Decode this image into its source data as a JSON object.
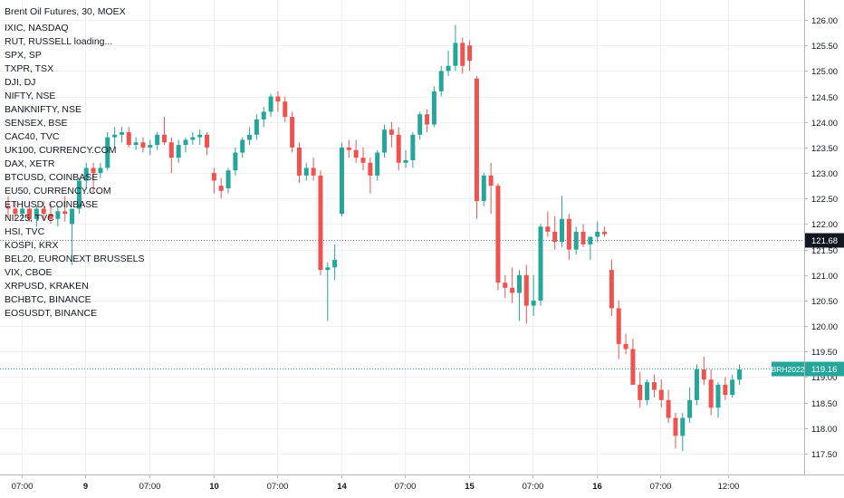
{
  "chart_data": {
    "type": "candlestick",
    "title": "Brent Oil Futures, 30, MOEX",
    "overlay_symbols": [
      "IXIC, NASDAQ",
      "RUT, RUSSELL loading...",
      "SPX, SP",
      "TXPR, TSX",
      "DJI, DJ",
      "NIFTY, NSE",
      "BANKNIFTY, NSE",
      "SENSEX, BSE",
      "CAC40, TVC",
      "UK100, CURRENCY.COM",
      "DAX, XETR",
      "BTCUSD, COINBASE",
      "EU50, CURRENCY.COM",
      "ETHUSD, COINBASE",
      "NI225, TVC",
      "HSI, TVC",
      "KOSPI, KRX",
      "BEL20, EURONEXT BRUSSELS",
      "VIX, CBOE",
      "XRPUSD, KRAKEN",
      "BCHBTC, BINANCE",
      "EOSUSDT, BINANCE"
    ],
    "y_ticks": [
      "126.00",
      "125.50",
      "125.00",
      "124.50",
      "124.00",
      "123.50",
      "123.00",
      "122.50",
      "122.00",
      "121.50",
      "121.00",
      "120.50",
      "120.00",
      "119.50",
      "119.00",
      "118.50",
      "118.00",
      "117.50"
    ],
    "ylim": [
      117.2,
      126.3
    ],
    "x_ticks": [
      {
        "label": "07:00",
        "bold": false,
        "index": 1.9
      },
      {
        "label": "9",
        "bold": true,
        "index": 10.9
      },
      {
        "label": "07:00",
        "bold": false,
        "index": 19.9
      },
      {
        "label": "10",
        "bold": true,
        "index": 28.9
      },
      {
        "label": "07:00",
        "bold": false,
        "index": 37.9
      },
      {
        "label": "14",
        "bold": true,
        "index": 46.9
      },
      {
        "label": "07:00",
        "bold": false,
        "index": 55.9
      },
      {
        "label": "15",
        "bold": true,
        "index": 64.9
      },
      {
        "label": "07:00",
        "bold": false,
        "index": 73.9
      },
      {
        "label": "16",
        "bold": true,
        "index": 82.9
      },
      {
        "label": "07:00",
        "bold": false,
        "index": 91.9
      },
      {
        "label": "12:00",
        "bold": false,
        "index": 101.4
      }
    ],
    "crosshair_price": "121.68",
    "crosshair_value": 121.68,
    "last_price": "119.16",
    "last_value": 119.16,
    "last_symbol": "BRH2022",
    "up_color": "#26a69a",
    "down_color": "#ef5350",
    "candles": [
      [
        122.35,
        122.55,
        122.1,
        122.3
      ],
      [
        122.3,
        122.45,
        122.1,
        122.2
      ],
      [
        122.2,
        122.45,
        122.1,
        122.3
      ],
      [
        122.3,
        122.45,
        122.05,
        122.1
      ],
      [
        122.1,
        122.35,
        121.95,
        122.3
      ],
      [
        122.3,
        122.45,
        122.1,
        122.2
      ],
      [
        122.2,
        122.4,
        122.0,
        122.1
      ],
      [
        122.1,
        122.35,
        121.95,
        122.25
      ],
      [
        122.25,
        122.55,
        122.05,
        122.2
      ],
      [
        122.0,
        122.3,
        121.2,
        122.3
      ],
      [
        122.3,
        122.9,
        122.2,
        122.85
      ],
      [
        122.85,
        123.2,
        122.7,
        123.1
      ],
      [
        123.1,
        123.2,
        122.6,
        123.0
      ],
      [
        123.0,
        123.2,
        122.9,
        123.1
      ],
      [
        123.1,
        123.8,
        123.05,
        123.7
      ],
      [
        123.7,
        123.9,
        123.5,
        123.75
      ],
      [
        123.75,
        123.9,
        123.6,
        123.8
      ],
      [
        123.8,
        123.9,
        123.5,
        123.55
      ],
      [
        123.55,
        123.7,
        123.45,
        123.6
      ],
      [
        123.6,
        123.7,
        123.4,
        123.5
      ],
      [
        123.5,
        123.65,
        123.35,
        123.55
      ],
      [
        123.55,
        123.8,
        123.45,
        123.75
      ],
      [
        123.75,
        124.1,
        123.55,
        123.6
      ],
      [
        123.6,
        123.7,
        123.0,
        123.3
      ],
      [
        123.3,
        123.65,
        123.2,
        123.55
      ],
      [
        123.55,
        123.7,
        123.4,
        123.65
      ],
      [
        123.65,
        123.8,
        123.55,
        123.7
      ],
      [
        123.7,
        123.85,
        123.55,
        123.75
      ],
      [
        123.75,
        123.8,
        123.35,
        123.5
      ],
      [
        123.0,
        123.1,
        122.6,
        122.85
      ],
      [
        122.75,
        122.9,
        122.5,
        122.65
      ],
      [
        122.7,
        123.1,
        122.6,
        123.05
      ],
      [
        123.05,
        123.5,
        122.95,
        123.4
      ],
      [
        123.4,
        123.7,
        123.3,
        123.65
      ],
      [
        123.65,
        123.9,
        123.55,
        123.75
      ],
      [
        123.75,
        124.15,
        123.65,
        124.05
      ],
      [
        124.05,
        124.3,
        123.9,
        124.2
      ],
      [
        124.2,
        124.55,
        124.1,
        124.5
      ],
      [
        124.5,
        124.6,
        124.2,
        124.4
      ],
      [
        124.4,
        124.5,
        124.0,
        124.1
      ],
      [
        124.1,
        124.2,
        123.4,
        123.5
      ],
      [
        123.5,
        123.6,
        122.8,
        122.95
      ],
      [
        122.95,
        123.2,
        122.85,
        123.1
      ],
      [
        123.1,
        123.3,
        122.85,
        122.95
      ],
      [
        122.95,
        123.05,
        121.0,
        121.1
      ],
      [
        121.1,
        121.25,
        120.1,
        121.15
      ],
      [
        121.15,
        121.6,
        120.9,
        121.3
      ],
      [
        122.2,
        123.6,
        122.15,
        123.5
      ],
      [
        123.5,
        123.65,
        123.3,
        123.45
      ],
      [
        123.45,
        123.65,
        123.2,
        123.3
      ],
      [
        123.3,
        123.5,
        123.05,
        123.2
      ],
      [
        123.2,
        123.3,
        122.6,
        122.95
      ],
      [
        122.95,
        123.45,
        122.85,
        123.4
      ],
      [
        123.4,
        123.95,
        123.3,
        123.85
      ],
      [
        123.85,
        124.0,
        123.5,
        123.75
      ],
      [
        123.75,
        123.9,
        123.05,
        123.2
      ],
      [
        123.2,
        123.45,
        123.1,
        123.25
      ],
      [
        123.25,
        123.8,
        123.1,
        123.75
      ],
      [
        123.75,
        124.2,
        123.65,
        124.15
      ],
      [
        124.15,
        124.25,
        123.8,
        123.95
      ],
      [
        123.95,
        124.7,
        123.9,
        124.6
      ],
      [
        124.6,
        125.1,
        124.5,
        125.0
      ],
      [
        125.0,
        125.4,
        124.9,
        125.1
      ],
      [
        125.1,
        125.9,
        125.0,
        125.55
      ],
      [
        125.55,
        125.65,
        124.95,
        125.1
      ],
      [
        125.5,
        125.6,
        125.0,
        125.2
      ],
      [
        124.85,
        124.9,
        122.1,
        122.45
      ],
      [
        122.45,
        123.0,
        122.35,
        122.95
      ],
      [
        122.95,
        123.2,
        122.2,
        122.75
      ],
      [
        122.75,
        122.8,
        120.7,
        120.85
      ],
      [
        120.85,
        121.0,
        120.55,
        120.75
      ],
      [
        120.75,
        121.15,
        120.45,
        120.65
      ],
      [
        120.65,
        121.1,
        120.1,
        121.0
      ],
      [
        121.0,
        121.2,
        120.05,
        120.4
      ],
      [
        120.4,
        121.0,
        120.2,
        120.5
      ],
      [
        120.5,
        122.0,
        120.4,
        121.95
      ],
      [
        121.95,
        122.25,
        121.75,
        121.85
      ],
      [
        121.85,
        122.15,
        121.5,
        121.65
      ],
      [
        121.65,
        122.55,
        121.55,
        122.1
      ],
      [
        122.1,
        122.2,
        121.3,
        121.5
      ],
      [
        121.5,
        121.95,
        121.4,
        121.85
      ],
      [
        121.85,
        122.0,
        121.55,
        121.6
      ],
      [
        121.6,
        121.75,
        121.3,
        121.75
      ],
      [
        121.75,
        122.05,
        121.65,
        121.85
      ],
      [
        121.85,
        121.95,
        121.75,
        121.8
      ],
      [
        121.1,
        121.3,
        120.2,
        120.35
      ],
      [
        120.35,
        120.5,
        119.35,
        119.65
      ],
      [
        119.65,
        119.85,
        119.45,
        119.55
      ],
      [
        119.55,
        119.75,
        118.9,
        118.85
      ],
      [
        118.85,
        119.1,
        118.4,
        118.55
      ],
      [
        118.55,
        118.95,
        118.45,
        118.9
      ],
      [
        118.9,
        119.05,
        118.6,
        118.75
      ],
      [
        118.75,
        118.95,
        118.4,
        118.55
      ],
      [
        118.55,
        118.75,
        118.1,
        118.2
      ],
      [
        118.2,
        118.3,
        117.6,
        117.85
      ],
      [
        117.85,
        118.3,
        117.55,
        118.2
      ],
      [
        118.2,
        118.8,
        118.1,
        118.55
      ],
      [
        118.55,
        119.25,
        118.45,
        119.15
      ],
      [
        119.15,
        119.4,
        118.85,
        118.95
      ],
      [
        118.95,
        119.15,
        118.25,
        118.4
      ],
      [
        118.4,
        118.9,
        118.2,
        118.85
      ],
      [
        118.85,
        119.0,
        118.55,
        118.65
      ],
      [
        118.65,
        119.05,
        118.6,
        118.95
      ],
      [
        118.95,
        119.25,
        118.85,
        119.15
      ]
    ]
  }
}
